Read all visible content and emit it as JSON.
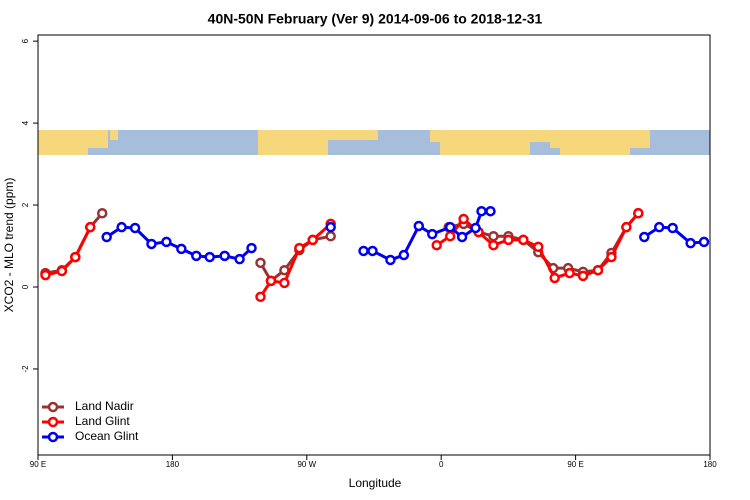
{
  "chart_data": {
    "type": "line",
    "title": "40N-50N February (Ver 9)   2014-09-06 to 2018-12-31",
    "x_label": "Longitude",
    "y_label": "XCO2 - MLO trend (ppm)",
    "xlim": [
      90,
      540
    ],
    "xticks": [
      {
        "value": 90,
        "label": "90 E"
      },
      {
        "value": 180,
        "label": "180"
      },
      {
        "value": 270,
        "label": "90 W"
      },
      {
        "value": 360,
        "label": "0"
      },
      {
        "value": 450,
        "label": "90 E"
      },
      {
        "value": 540,
        "label": "180"
      }
    ],
    "ylim": [
      -4.1,
      6.15
    ],
    "yticks": [
      -2,
      0,
      2,
      4,
      6
    ],
    "legend": "bottom-left",
    "series": [
      {
        "name": "Land Nadir",
        "color": "#993333",
        "x": [
          95,
          106,
          115,
          125,
          133,
          null,
          239,
          246,
          255,
          265,
          274,
          286,
          null,
          365,
          375,
          385,
          395,
          405,
          415,
          425,
          435,
          445,
          455,
          465,
          474,
          484,
          492
        ],
        "values": [
          0.34,
          0.41,
          0.73,
          1.46,
          1.8,
          null,
          0.59,
          0.15,
          0.41,
          0.9,
          1.15,
          1.24,
          null,
          1.46,
          1.54,
          1.34,
          1.24,
          1.24,
          1.15,
          0.85,
          0.46,
          0.46,
          0.37,
          0.41,
          0.83,
          1.46,
          1.8
        ]
      },
      {
        "name": "Land Glint",
        "color": "#ff0000",
        "x": [
          95,
          106,
          115,
          125,
          null,
          239,
          246,
          255,
          265,
          274,
          286,
          null,
          357,
          366,
          375,
          385,
          395,
          405,
          415,
          425,
          436,
          446,
          455,
          465,
          474,
          484,
          492
        ],
        "values": [
          0.29,
          0.39,
          0.73,
          1.46,
          null,
          -0.24,
          0.15,
          0.1,
          0.95,
          1.15,
          1.54,
          null,
          1.02,
          1.24,
          1.66,
          1.34,
          1.02,
          1.15,
          1.15,
          0.98,
          0.22,
          0.34,
          0.27,
          0.41,
          0.73,
          1.46,
          1.8
        ]
      },
      {
        "name": "Ocean Glint",
        "color": "#0000ee",
        "x": [
          136,
          146,
          155,
          166,
          176,
          186,
          196,
          205,
          215,
          225,
          233,
          null,
          286,
          null,
          308,
          314,
          326,
          335,
          345,
          354,
          366,
          374,
          383,
          387,
          393,
          null,
          496,
          506,
          515,
          527,
          536
        ],
        "values": [
          1.22,
          1.46,
          1.44,
          1.05,
          1.1,
          0.93,
          0.76,
          0.73,
          0.76,
          0.68,
          0.95,
          null,
          1.46,
          null,
          0.88,
          0.88,
          0.66,
          0.78,
          1.49,
          1.29,
          1.46,
          1.22,
          1.44,
          1.85,
          1.85,
          null,
          1.22,
          1.46,
          1.44,
          1.07,
          1.1
        ]
      }
    ]
  }
}
